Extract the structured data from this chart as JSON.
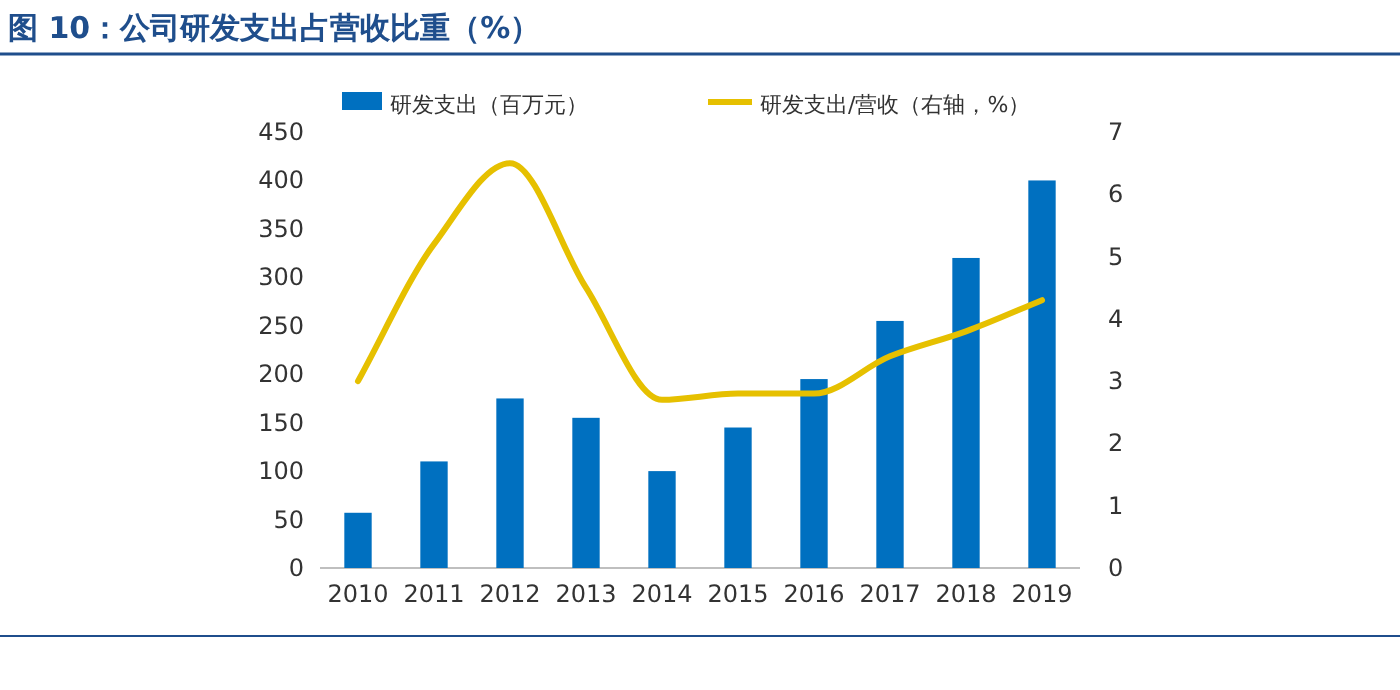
{
  "chart_data": {
    "type": "bar",
    "title": "图 10：公司研发支出占营收比重（%）",
    "categories": [
      "2010",
      "2011",
      "2012",
      "2013",
      "2014",
      "2015",
      "2016",
      "2017",
      "2018",
      "2019"
    ],
    "series": [
      {
        "name": "研发支出（百万元）",
        "color": "#0070c0",
        "values": [
          57,
          110,
          175,
          155,
          100,
          145,
          195,
          255,
          320,
          400
        ]
      },
      {
        "name": "研发支出/营收（右轴，%）",
        "type": "line",
        "axis": "y2",
        "color": "#e6c000",
        "values": [
          3.0,
          5.2,
          6.5,
          4.5,
          2.7,
          2.8,
          2.8,
          3.4,
          3.8,
          4.3
        ]
      }
    ],
    "ylim": [
      0,
      450
    ],
    "yticks": [
      0,
      50,
      100,
      150,
      200,
      250,
      300,
      350,
      400,
      450
    ],
    "y2lim": [
      0,
      7
    ],
    "y2ticks": [
      0,
      1,
      2,
      3,
      4,
      5,
      6,
      7
    ],
    "grid": false,
    "legend": "top"
  }
}
